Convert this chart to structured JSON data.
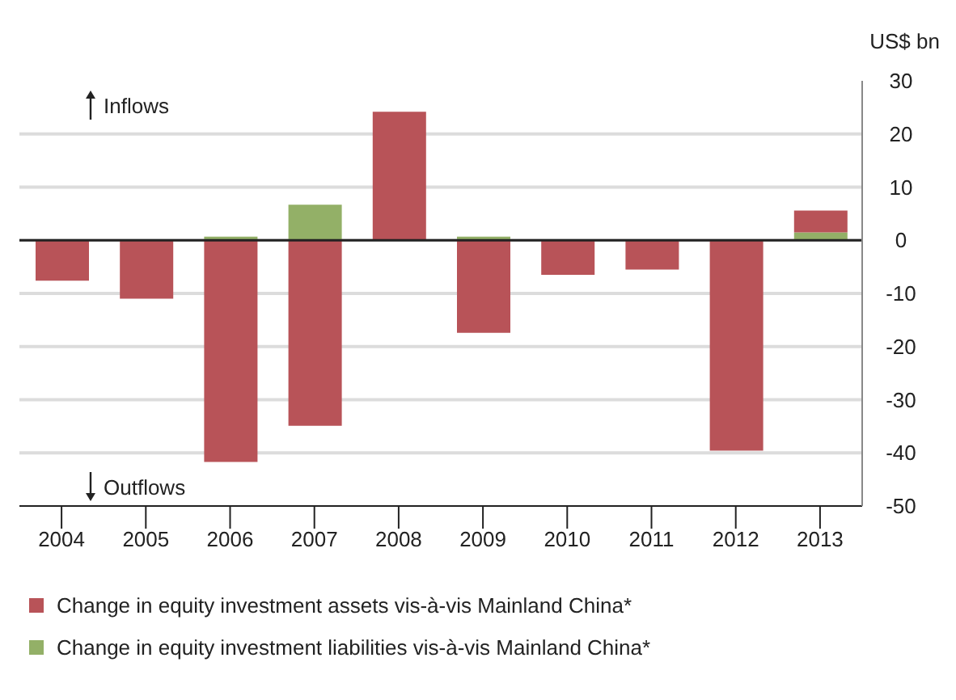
{
  "chart_data": {
    "type": "bar",
    "stacked": true,
    "ylabel": "US$ bn",
    "categories": [
      "2004",
      "2005",
      "2006",
      "2007",
      "2008",
      "2009",
      "2010",
      "2011",
      "2012",
      "2013"
    ],
    "series": [
      {
        "name": "Change in equity investment liabilities vis-à-vis Mainland China*",
        "color": "#93b067",
        "values": [
          null,
          null,
          0.7,
          6.7,
          null,
          0.7,
          null,
          null,
          null,
          1.5
        ]
      },
      {
        "name": "Change in equity investment assets vis-à-vis Mainland China*",
        "color": "#b85358",
        "values": [
          -7.6,
          -11,
          -41.7,
          -34.9,
          24.2,
          -17.4,
          -6.5,
          -5.5,
          -39.6,
          4.1
        ]
      }
    ],
    "ylim": [
      -50,
      30
    ],
    "yticks": [
      -50,
      -40,
      -30,
      -20,
      -10,
      0,
      10,
      20,
      30
    ],
    "grid": "y",
    "legend": "bottom",
    "ref_lines": [
      {
        "axis": "y",
        "value": 0,
        "color": "#222222"
      }
    ],
    "annotations": [
      "Inflows",
      "Outflows"
    ]
  }
}
